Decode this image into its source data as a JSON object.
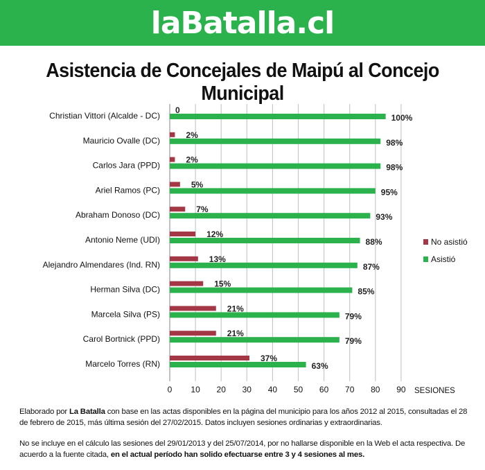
{
  "header": {
    "brand": "laBatalla.cl",
    "brand_color": "#2bb24c"
  },
  "chart_data": {
    "type": "bar",
    "orientation": "horizontal",
    "title": "Asistencia de Concejales de Maipú al Concejo Municipal",
    "xlabel": "SESIONES",
    "xlim": [
      0,
      90
    ],
    "xticks": [
      0,
      10,
      20,
      30,
      40,
      50,
      60,
      70,
      80,
      90
    ],
    "grid": "vertical",
    "legend_position": "right",
    "categories": [
      "Christian Vittori (Alcalde - DC)",
      "Mauricio Ovalle (DC)",
      "Carlos Jara (PPD)",
      "Ariel Ramos (PC)",
      "Abraham Donoso (DC)",
      "Antonio Neme  (UDI)",
      "Alejandro Almendares (Ind. RN)",
      "Herman Silva (DC)",
      "Marcela Silva (PS)",
      "Carol Bortnick (PPD)",
      "Marcelo Torres (RN)"
    ],
    "series": [
      {
        "name": "No asistió",
        "color": "#a33745",
        "values": [
          0,
          2,
          2,
          4,
          6,
          10,
          11,
          13,
          18,
          18,
          31
        ],
        "labels": [
          "0",
          "2%",
          "2%",
          "5%",
          "7%",
          "12%",
          "13%",
          "15%",
          "21%",
          "21%",
          "37%"
        ]
      },
      {
        "name": "Asistió",
        "color": "#2bb24c",
        "values": [
          84,
          82,
          82,
          80,
          78,
          74,
          73,
          71,
          66,
          66,
          53
        ],
        "labels": [
          "100%",
          "98%",
          "98%",
          "95%",
          "93%",
          "88%",
          "87%",
          "85%",
          "79%",
          "79%",
          "63%"
        ]
      }
    ]
  },
  "notes": {
    "p1_a": "Elaborado por ",
    "p1_b": "La Batalla",
    "p1_c": " con base en las actas disponibles en la página del municipio para los años 2012 al 2015, consultadas el 28 de febrero de 2015, más última sesión del 27/02/2015. Datos incluyen sesiones ordinarias y extraordinarias.",
    "p2_a": "No se incluye en el cálculo las sesiones del 29/01/2013 y del 25/07/2014, por no hallarse disponible en la Web el acta respectiva. De acuerdo a la fuente citada, ",
    "p2_b": "en el actual período han solido efectuarse entre 3 y 4 sesiones al mes."
  }
}
